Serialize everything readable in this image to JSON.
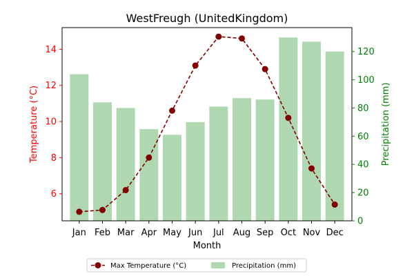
{
  "chart_data": {
    "type": "bar",
    "title": "WestFreugh (UnitedKingdom)",
    "xlabel": "Month",
    "ylabel_left": "Temperature (°C)",
    "ylabel_right": "Precipitation (mm)",
    "categories": [
      "Jan",
      "Feb",
      "Mar",
      "Apr",
      "May",
      "Jun",
      "Jul",
      "Aug",
      "Sep",
      "Oct",
      "Nov",
      "Dec"
    ],
    "series": [
      {
        "name": "Max Temperature (°C)",
        "kind": "line",
        "axis": "left",
        "style": "dashed",
        "marker": "circle",
        "color": "#800000",
        "values": [
          5.0,
          5.1,
          6.2,
          8.0,
          10.6,
          13.1,
          14.7,
          14.6,
          12.9,
          10.2,
          7.4,
          5.4
        ]
      },
      {
        "name": "Precipitation (mm)",
        "kind": "bar",
        "axis": "right",
        "color": "#b0d8b0",
        "values": [
          104,
          84,
          80,
          65,
          61,
          70,
          81,
          87,
          86,
          130,
          127,
          120
        ]
      }
    ],
    "y_left": {
      "range": [
        4.5,
        15.2
      ],
      "ticks": [
        6,
        8,
        10,
        12,
        14
      ],
      "color": "#ff0000"
    },
    "y_right": {
      "range": [
        0,
        137
      ],
      "ticks": [
        0,
        20,
        40,
        60,
        80,
        100,
        120
      ],
      "color": "#008000"
    },
    "grid": false,
    "legend": "bottom-center"
  }
}
